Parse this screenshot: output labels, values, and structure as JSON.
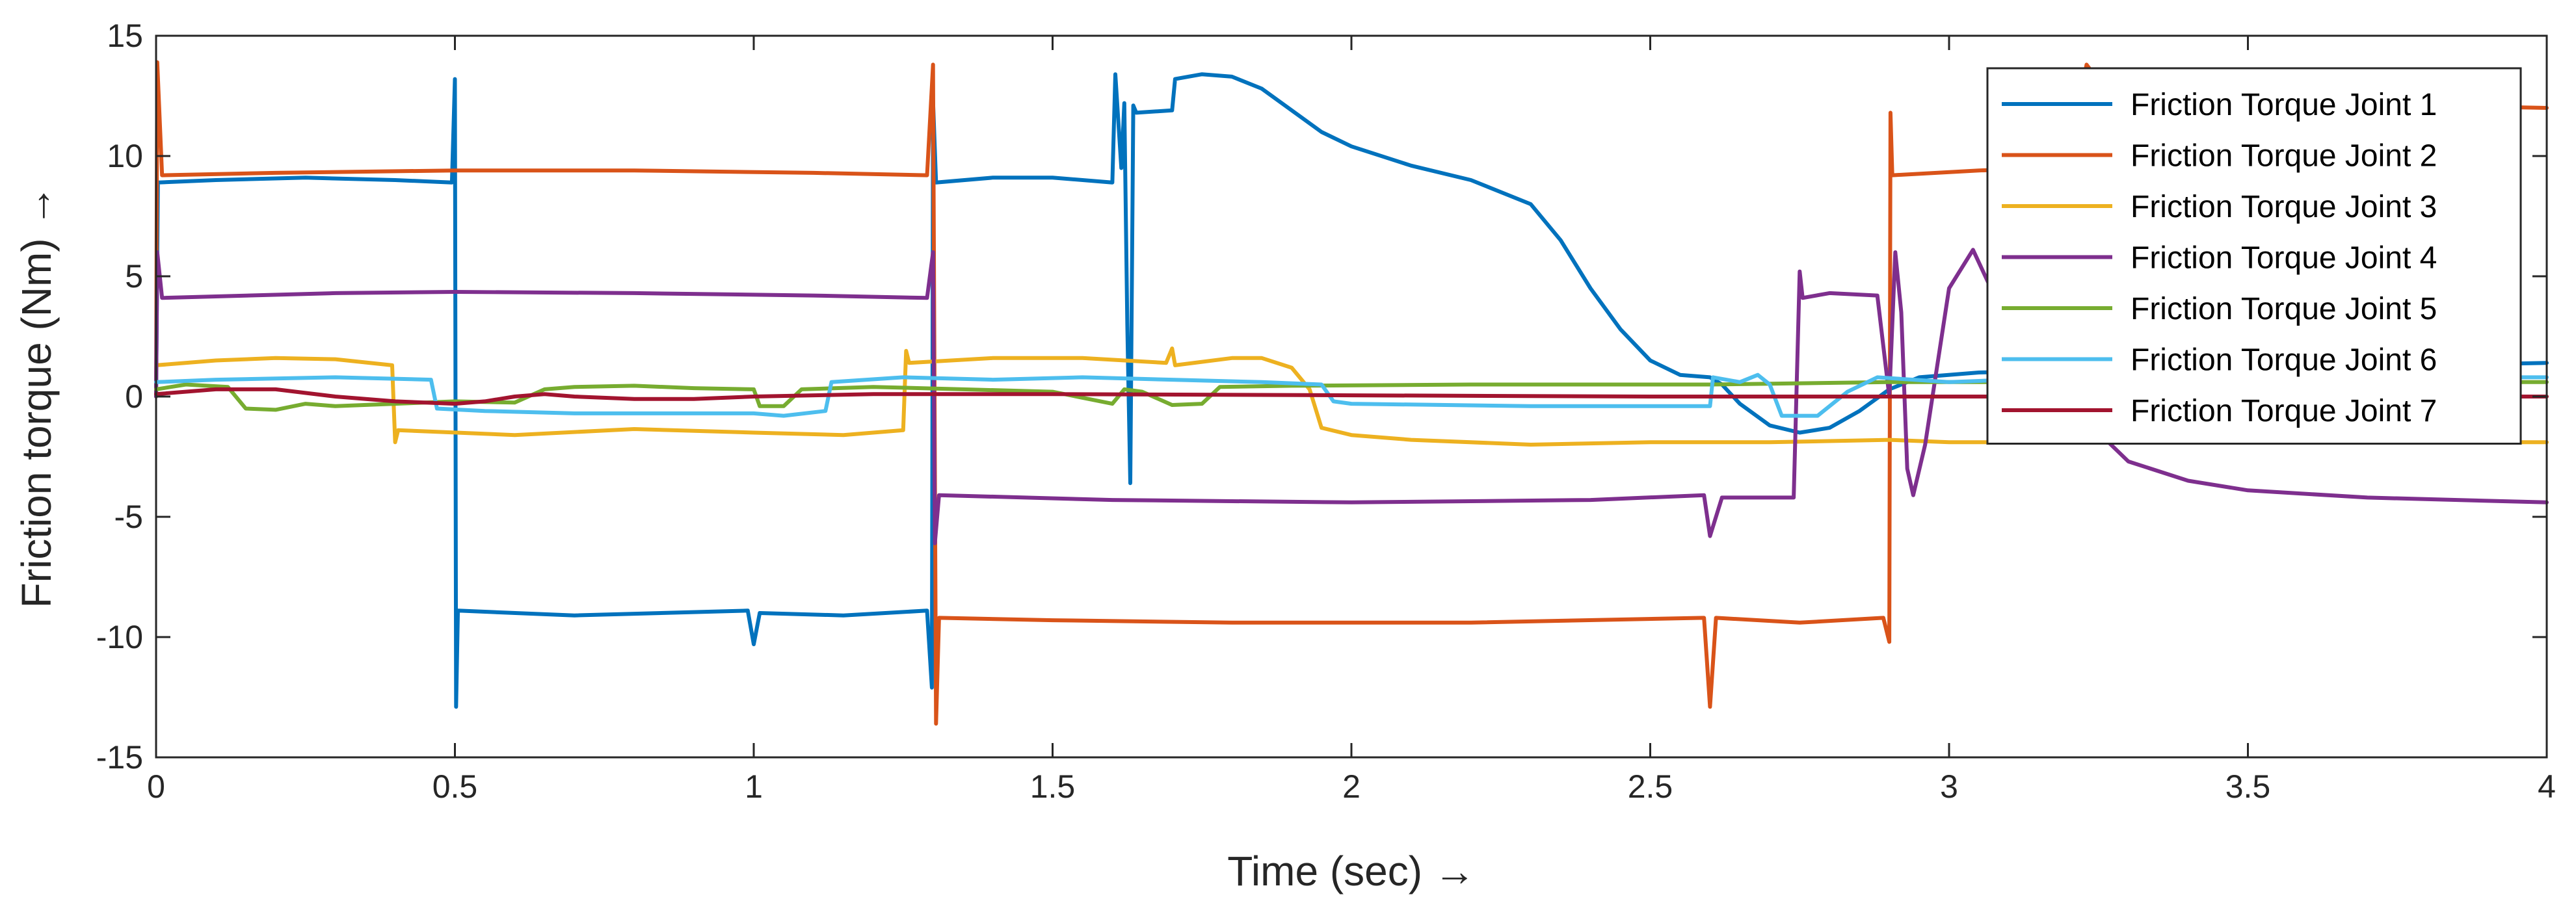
{
  "chart_data": {
    "type": "line",
    "title": "",
    "xlabel": "Time (sec) →",
    "ylabel": "Friction torque (Nm) →",
    "xlim": [
      0,
      4
    ],
    "ylim": [
      -15,
      15
    ],
    "xticks": [
      0,
      0.5,
      1,
      1.5,
      2,
      2.5,
      3,
      3.5,
      4
    ],
    "xtick_labels": [
      "0",
      "0.5",
      "1",
      "1.5",
      "2",
      "2.5",
      "3",
      "3.5",
      "4"
    ],
    "yticks": [
      -15,
      -10,
      -5,
      0,
      5,
      10,
      15
    ],
    "ytick_labels": [
      "-15",
      "-10",
      "-5",
      "0",
      "5",
      "10",
      "15"
    ],
    "grid": false,
    "legend_position": "top-right",
    "series": [
      {
        "name": "Friction Torque Joint 1",
        "color": "#0072BD",
        "points": [
          [
            0,
            0
          ],
          [
            0.003,
            8.9
          ],
          [
            0.1,
            9.0
          ],
          [
            0.25,
            9.1
          ],
          [
            0.4,
            9.0
          ],
          [
            0.495,
            8.9
          ],
          [
            0.5,
            13.2
          ],
          [
            0.502,
            -12.9
          ],
          [
            0.505,
            -8.9
          ],
          [
            0.7,
            -9.1
          ],
          [
            0.99,
            -8.9
          ],
          [
            1.0,
            -10.3
          ],
          [
            1.01,
            -9.0
          ],
          [
            1.15,
            -9.1
          ],
          [
            1.29,
            -8.9
          ],
          [
            1.298,
            -12.1
          ],
          [
            1.3,
            12.3
          ],
          [
            1.305,
            8.9
          ],
          [
            1.4,
            9.1
          ],
          [
            1.5,
            9.1
          ],
          [
            1.6,
            8.9
          ],
          [
            1.605,
            13.4
          ],
          [
            1.615,
            9.5
          ],
          [
            1.62,
            12.2
          ],
          [
            1.625,
            3
          ],
          [
            1.63,
            -3.6
          ],
          [
            1.635,
            12.1
          ],
          [
            1.64,
            11.8
          ],
          [
            1.7,
            11.9
          ],
          [
            1.705,
            13.2
          ],
          [
            1.75,
            13.4
          ],
          [
            1.8,
            13.3
          ],
          [
            1.85,
            12.8
          ],
          [
            1.9,
            11.9
          ],
          [
            1.95,
            11.0
          ],
          [
            2.0,
            10.4
          ],
          [
            2.1,
            9.6
          ],
          [
            2.2,
            9.0
          ],
          [
            2.3,
            8.0
          ],
          [
            2.35,
            6.5
          ],
          [
            2.4,
            4.5
          ],
          [
            2.45,
            2.8
          ],
          [
            2.5,
            1.5
          ],
          [
            2.55,
            0.9
          ],
          [
            2.6,
            0.8
          ],
          [
            2.62,
            0.5
          ],
          [
            2.65,
            -0.3
          ],
          [
            2.7,
            -1.2
          ],
          [
            2.75,
            -1.5
          ],
          [
            2.8,
            -1.3
          ],
          [
            2.85,
            -0.6
          ],
          [
            2.9,
            0.3
          ],
          [
            2.95,
            0.8
          ],
          [
            3.05,
            1.0
          ],
          [
            3.3,
            1.1
          ],
          [
            3.5,
            1.2
          ],
          [
            3.8,
            1.3
          ],
          [
            4.0,
            1.4
          ]
        ]
      },
      {
        "name": "Friction Torque Joint 2",
        "color": "#D95319",
        "points": [
          [
            0,
            0
          ],
          [
            0.002,
            13.9
          ],
          [
            0.01,
            9.2
          ],
          [
            0.2,
            9.3
          ],
          [
            0.5,
            9.4
          ],
          [
            0.8,
            9.4
          ],
          [
            1.1,
            9.3
          ],
          [
            1.29,
            9.2
          ],
          [
            1.3,
            13.8
          ],
          [
            1.305,
            -13.6
          ],
          [
            1.31,
            -9.2
          ],
          [
            1.5,
            -9.3
          ],
          [
            1.8,
            -9.4
          ],
          [
            2.2,
            -9.4
          ],
          [
            2.59,
            -9.2
          ],
          [
            2.6,
            -12.9
          ],
          [
            2.61,
            -9.2
          ],
          [
            2.75,
            -9.4
          ],
          [
            2.89,
            -9.2
          ],
          [
            2.9,
            -10.2
          ],
          [
            2.902,
            11.8
          ],
          [
            2.905,
            9.2
          ],
          [
            3.05,
            9.4
          ],
          [
            3.2,
            9.5
          ],
          [
            3.23,
            13.8
          ],
          [
            3.26,
            12.8
          ],
          [
            3.5,
            12.4
          ],
          [
            3.8,
            12.1
          ],
          [
            4.0,
            12.0
          ]
        ]
      },
      {
        "name": "Friction Torque Joint 3",
        "color": "#EDB120",
        "points": [
          [
            0,
            1.3
          ],
          [
            0.1,
            1.5
          ],
          [
            0.2,
            1.6
          ],
          [
            0.3,
            1.55
          ],
          [
            0.395,
            1.3
          ],
          [
            0.4,
            -1.9
          ],
          [
            0.405,
            -1.4
          ],
          [
            0.6,
            -1.6
          ],
          [
            0.8,
            -1.35
          ],
          [
            1.0,
            -1.5
          ],
          [
            1.15,
            -1.6
          ],
          [
            1.25,
            -1.4
          ],
          [
            1.255,
            1.9
          ],
          [
            1.26,
            1.4
          ],
          [
            1.4,
            1.6
          ],
          [
            1.55,
            1.6
          ],
          [
            1.69,
            1.4
          ],
          [
            1.7,
            2.0
          ],
          [
            1.705,
            1.3
          ],
          [
            1.8,
            1.6
          ],
          [
            1.85,
            1.6
          ],
          [
            1.9,
            1.2
          ],
          [
            1.93,
            0.3
          ],
          [
            1.95,
            -1.3
          ],
          [
            2.0,
            -1.6
          ],
          [
            2.1,
            -1.8
          ],
          [
            2.3,
            -2.0
          ],
          [
            2.5,
            -1.9
          ],
          [
            2.7,
            -1.9
          ],
          [
            2.9,
            -1.8
          ],
          [
            3.0,
            -1.9
          ],
          [
            3.5,
            -1.9
          ],
          [
            4.0,
            -1.9
          ]
        ]
      },
      {
        "name": "Friction Torque Joint 4",
        "color": "#7E2F8E",
        "points": [
          [
            0,
            0
          ],
          [
            0.002,
            6.0
          ],
          [
            0.01,
            4.1
          ],
          [
            0.3,
            4.3
          ],
          [
            0.5,
            4.35
          ],
          [
            0.8,
            4.3
          ],
          [
            1.1,
            4.2
          ],
          [
            1.29,
            4.1
          ],
          [
            1.3,
            6.0
          ],
          [
            1.303,
            -6.1
          ],
          [
            1.31,
            -4.1
          ],
          [
            1.6,
            -4.3
          ],
          [
            2.0,
            -4.4
          ],
          [
            2.4,
            -4.3
          ],
          [
            2.59,
            -4.1
          ],
          [
            2.6,
            -5.8
          ],
          [
            2.62,
            -4.2
          ],
          [
            2.74,
            -4.2
          ],
          [
            2.75,
            5.2
          ],
          [
            2.755,
            4.1
          ],
          [
            2.8,
            4.3
          ],
          [
            2.88,
            4.2
          ],
          [
            2.9,
            0
          ],
          [
            2.91,
            6.0
          ],
          [
            2.92,
            3.5
          ],
          [
            2.93,
            -3
          ],
          [
            2.94,
            -4.1
          ],
          [
            2.96,
            -2
          ],
          [
            3.0,
            4.5
          ],
          [
            3.04,
            6.1
          ],
          [
            3.07,
            4.5
          ],
          [
            3.1,
            2.0
          ],
          [
            3.15,
            0.5
          ],
          [
            3.2,
            0.4
          ],
          [
            3.25,
            -1.5
          ],
          [
            3.3,
            -2.7
          ],
          [
            3.4,
            -3.5
          ],
          [
            3.5,
            -3.9
          ],
          [
            3.7,
            -4.2
          ],
          [
            4.0,
            -4.4
          ]
        ]
      },
      {
        "name": "Friction Torque Joint 5",
        "color": "#77AC30",
        "points": [
          [
            0,
            0.3
          ],
          [
            0.05,
            0.5
          ],
          [
            0.12,
            0.4
          ],
          [
            0.15,
            -0.5
          ],
          [
            0.2,
            -0.55
          ],
          [
            0.25,
            -0.3
          ],
          [
            0.3,
            -0.4
          ],
          [
            0.4,
            -0.3
          ],
          [
            0.5,
            -0.2
          ],
          [
            0.6,
            -0.25
          ],
          [
            0.65,
            0.3
          ],
          [
            0.7,
            0.4
          ],
          [
            0.8,
            0.45
          ],
          [
            0.9,
            0.35
          ],
          [
            1.0,
            0.3
          ],
          [
            1.01,
            -0.4
          ],
          [
            1.05,
            -0.4
          ],
          [
            1.08,
            0.3
          ],
          [
            1.2,
            0.4
          ],
          [
            1.35,
            0.3
          ],
          [
            1.5,
            0.2
          ],
          [
            1.6,
            -0.3
          ],
          [
            1.62,
            0.3
          ],
          [
            1.65,
            0.2
          ],
          [
            1.7,
            -0.35
          ],
          [
            1.75,
            -0.3
          ],
          [
            1.78,
            0.4
          ],
          [
            1.9,
            0.45
          ],
          [
            2.2,
            0.5
          ],
          [
            2.6,
            0.5
          ],
          [
            2.9,
            0.6
          ],
          [
            3.0,
            0.6
          ],
          [
            3.5,
            0.6
          ],
          [
            4.0,
            0.6
          ]
        ]
      },
      {
        "name": "Friction Torque Joint 6",
        "color": "#4DBEEE",
        "points": [
          [
            0,
            0.6
          ],
          [
            0.1,
            0.7
          ],
          [
            0.3,
            0.8
          ],
          [
            0.46,
            0.7
          ],
          [
            0.47,
            -0.5
          ],
          [
            0.55,
            -0.6
          ],
          [
            0.7,
            -0.7
          ],
          [
            0.85,
            -0.7
          ],
          [
            1.0,
            -0.7
          ],
          [
            1.05,
            -0.8
          ],
          [
            1.12,
            -0.6
          ],
          [
            1.13,
            0.6
          ],
          [
            1.25,
            0.8
          ],
          [
            1.4,
            0.7
          ],
          [
            1.55,
            0.8
          ],
          [
            1.7,
            0.7
          ],
          [
            1.85,
            0.6
          ],
          [
            1.95,
            0.5
          ],
          [
            1.97,
            -0.2
          ],
          [
            2.0,
            -0.3
          ],
          [
            2.3,
            -0.4
          ],
          [
            2.6,
            -0.4
          ],
          [
            2.605,
            0.8
          ],
          [
            2.65,
            0.6
          ],
          [
            2.68,
            0.9
          ],
          [
            2.7,
            0.5
          ],
          [
            2.72,
            -0.8
          ],
          [
            2.78,
            -0.8
          ],
          [
            2.83,
            0.2
          ],
          [
            2.88,
            0.8
          ],
          [
            3.0,
            0.6
          ],
          [
            3.1,
            0.7
          ],
          [
            3.5,
            0.8
          ],
          [
            4.0,
            0.8
          ]
        ]
      },
      {
        "name": "Friction Torque Joint 7",
        "color": "#A2142F",
        "points": [
          [
            0,
            0.1
          ],
          [
            0.1,
            0.3
          ],
          [
            0.2,
            0.3
          ],
          [
            0.3,
            0.0
          ],
          [
            0.4,
            -0.2
          ],
          [
            0.5,
            -0.3
          ],
          [
            0.55,
            -0.2
          ],
          [
            0.6,
            0.0
          ],
          [
            0.65,
            0.1
          ],
          [
            0.7,
            0.0
          ],
          [
            0.8,
            -0.1
          ],
          [
            0.9,
            -0.1
          ],
          [
            1.0,
            0.0
          ],
          [
            1.2,
            0.1
          ],
          [
            1.5,
            0.1
          ],
          [
            2.0,
            0.05
          ],
          [
            2.5,
            0.0
          ],
          [
            3.0,
            0.0
          ],
          [
            3.5,
            0.0
          ],
          [
            4.0,
            0.0
          ]
        ]
      }
    ]
  }
}
